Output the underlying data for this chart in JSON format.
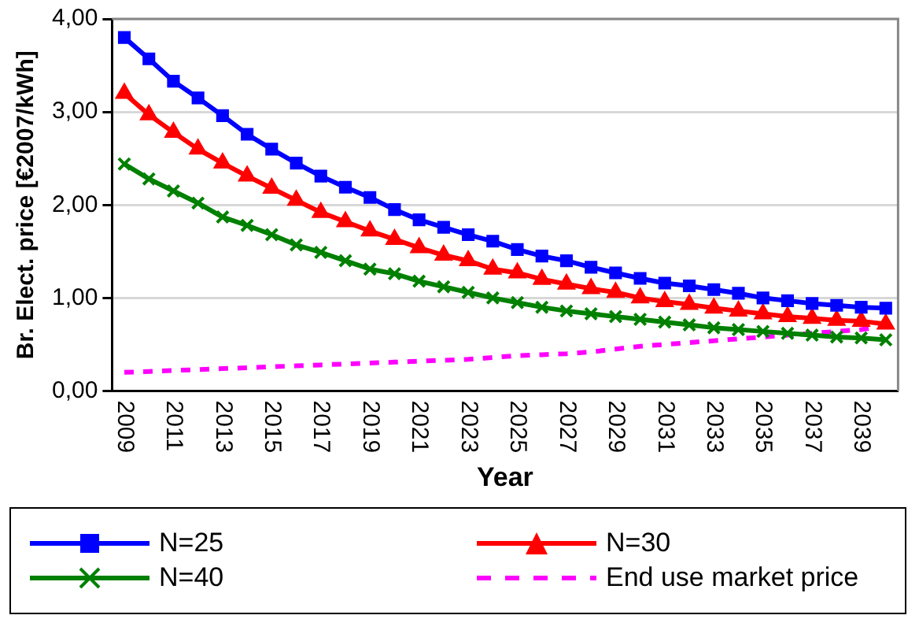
{
  "chart_data": {
    "type": "line",
    "xlabel": "Year",
    "ylabel": "Br. Elect. price [€2007/kWh]",
    "categories": [
      "2009",
      null,
      "2011",
      null,
      "2013",
      null,
      "2015",
      null,
      "2017",
      null,
      "2019",
      null,
      "2021",
      null,
      "2023",
      null,
      "2025",
      null,
      "2027",
      null,
      "2029",
      null,
      "2031",
      null,
      "2033",
      null,
      "2035",
      null,
      "2037",
      null,
      "2039",
      null
    ],
    "ylim": [
      0,
      4
    ],
    "yticks": [
      {
        "value": 0,
        "label": "0,00"
      },
      {
        "value": 1,
        "label": "1,00"
      },
      {
        "value": 2,
        "label": "2,00"
      },
      {
        "value": 3,
        "label": "3,00"
      },
      {
        "value": 4,
        "label": "4,00"
      }
    ],
    "grid": "y",
    "legend": "bottom",
    "series": [
      {
        "name": "N=25",
        "color": "#0000ff",
        "marker": "square",
        "line_style": "solid",
        "values": [
          3.8,
          3.57,
          3.33,
          3.15,
          2.96,
          2.76,
          2.6,
          2.45,
          2.31,
          2.19,
          2.08,
          1.95,
          1.84,
          1.76,
          1.68,
          1.61,
          1.52,
          1.45,
          1.4,
          1.33,
          1.27,
          1.21,
          1.16,
          1.13,
          1.09,
          1.05,
          1.0,
          0.97,
          0.94,
          0.92,
          0.9,
          0.89
        ]
      },
      {
        "name": "N=30",
        "color": "#ff0000",
        "marker": "triangle",
        "line_style": "solid",
        "values": [
          3.2,
          2.97,
          2.78,
          2.6,
          2.45,
          2.31,
          2.18,
          2.05,
          1.92,
          1.82,
          1.72,
          1.63,
          1.54,
          1.46,
          1.4,
          1.31,
          1.27,
          1.2,
          1.15,
          1.1,
          1.06,
          1.0,
          0.96,
          0.93,
          0.89,
          0.86,
          0.83,
          0.8,
          0.78,
          0.76,
          0.75,
          0.72
        ]
      },
      {
        "name": "N=40",
        "color": "#008000",
        "marker": "cross",
        "line_style": "solid",
        "values": [
          2.44,
          2.28,
          2.15,
          2.02,
          1.87,
          1.78,
          1.68,
          1.57,
          1.49,
          1.4,
          1.31,
          1.26,
          1.18,
          1.12,
          1.06,
          1.0,
          0.95,
          0.9,
          0.86,
          0.83,
          0.8,
          0.77,
          0.74,
          0.71,
          0.68,
          0.66,
          0.64,
          0.62,
          0.6,
          0.58,
          0.57,
          0.55
        ]
      },
      {
        "name": "End use market price",
        "color": "#ff00ff",
        "marker": "none",
        "line_style": "dashed",
        "values": [
          0.2,
          0.21,
          0.22,
          0.23,
          0.24,
          0.25,
          0.26,
          0.27,
          0.28,
          0.29,
          0.3,
          0.31,
          0.32,
          0.33,
          0.34,
          0.36,
          0.38,
          0.39,
          0.4,
          0.42,
          0.45,
          0.48,
          0.5,
          0.52,
          0.54,
          0.56,
          0.58,
          0.6,
          0.62,
          0.64,
          0.66,
          0.7
        ]
      }
    ]
  }
}
